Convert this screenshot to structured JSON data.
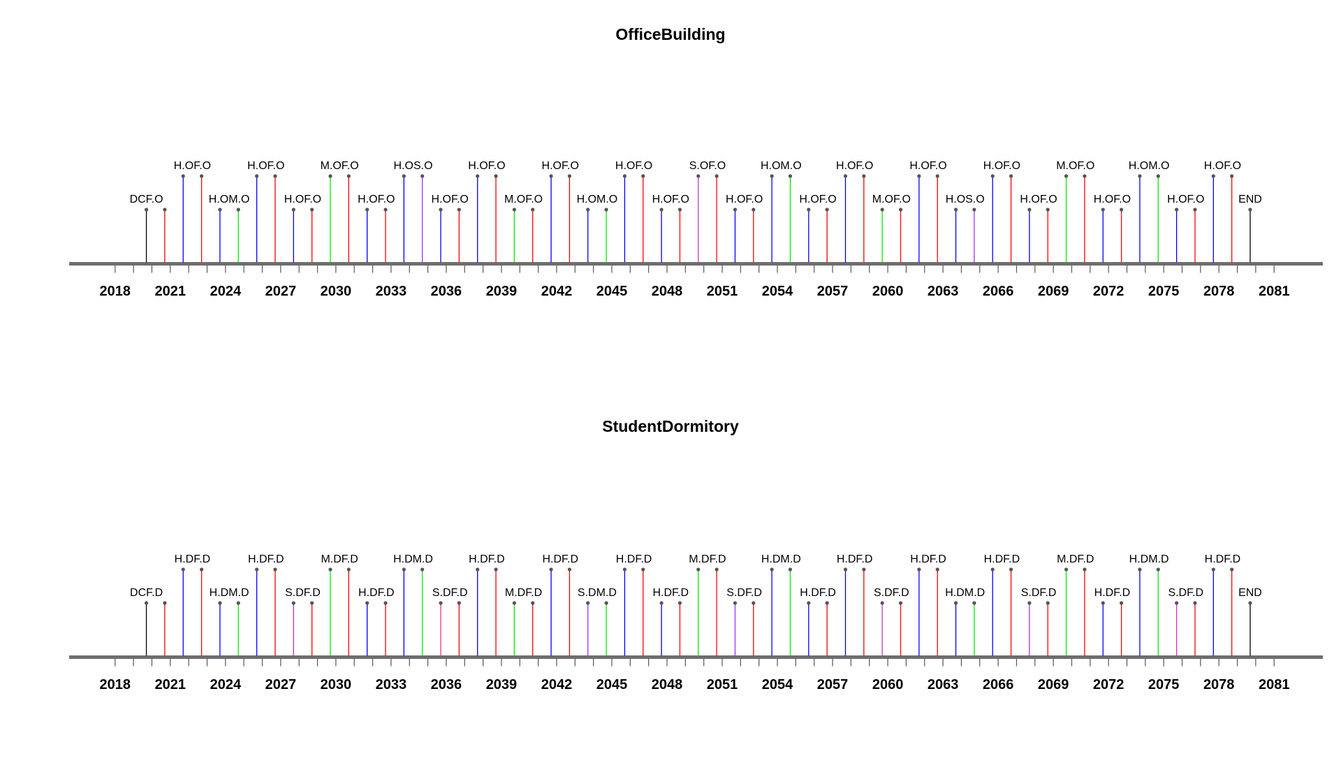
{
  "chart_data": [
    {
      "type": "timeline",
      "title": "OfficeBuilding",
      "x_ticks_labeled": [
        2018,
        2021,
        2024,
        2027,
        2030,
        2033,
        2036,
        2039,
        2042,
        2045,
        2048,
        2051,
        2054,
        2057,
        2060,
        2063,
        2066,
        2069,
        2072,
        2075,
        2078,
        2081
      ],
      "xlim": [
        2018,
        2081
      ],
      "events": [
        {
          "x": 2019.7,
          "color": "#000000",
          "level": "low"
        },
        {
          "x": 2020.7,
          "color": "#ff0000",
          "level": "low"
        },
        {
          "x": 2021.7,
          "color": "#0000ff",
          "level": "high"
        },
        {
          "x": 2022.7,
          "color": "#ff0000",
          "level": "high"
        },
        {
          "x": 2023.7,
          "color": "#0000ff",
          "level": "low"
        },
        {
          "x": 2024.7,
          "color": "#00ee00",
          "level": "low"
        },
        {
          "x": 2025.7,
          "color": "#0000ff",
          "level": "high"
        },
        {
          "x": 2026.7,
          "color": "#ff0000",
          "level": "high"
        },
        {
          "x": 2027.7,
          "color": "#0000ff",
          "level": "low"
        },
        {
          "x": 2028.7,
          "color": "#ff0000",
          "level": "low"
        },
        {
          "x": 2029.7,
          "color": "#00ee00",
          "level": "high"
        },
        {
          "x": 2030.7,
          "color": "#ff0000",
          "level": "high"
        },
        {
          "x": 2031.7,
          "color": "#0000ff",
          "level": "low"
        },
        {
          "x": 2032.7,
          "color": "#ff0000",
          "level": "low"
        },
        {
          "x": 2033.7,
          "color": "#0000ff",
          "level": "high"
        },
        {
          "x": 2034.7,
          "color": "#9933ff",
          "level": "high"
        },
        {
          "x": 2035.7,
          "color": "#0000ff",
          "level": "low"
        },
        {
          "x": 2036.7,
          "color": "#ff0000",
          "level": "low"
        },
        {
          "x": 2037.7,
          "color": "#0000ff",
          "level": "high"
        },
        {
          "x": 2038.7,
          "color": "#ff0000",
          "level": "high"
        },
        {
          "x": 2039.7,
          "color": "#00ee00",
          "level": "low"
        },
        {
          "x": 2040.7,
          "color": "#ff0000",
          "level": "low"
        },
        {
          "x": 2041.7,
          "color": "#0000ff",
          "level": "high"
        },
        {
          "x": 2042.7,
          "color": "#ff0000",
          "level": "high"
        },
        {
          "x": 2043.7,
          "color": "#0000ff",
          "level": "low"
        },
        {
          "x": 2044.7,
          "color": "#00ee00",
          "level": "low"
        },
        {
          "x": 2045.7,
          "color": "#0000ff",
          "level": "high"
        },
        {
          "x": 2046.7,
          "color": "#ff0000",
          "level": "high"
        },
        {
          "x": 2047.7,
          "color": "#0000ff",
          "level": "low"
        },
        {
          "x": 2048.7,
          "color": "#ff0000",
          "level": "low"
        },
        {
          "x": 2049.7,
          "color": "#cc33cc",
          "level": "high"
        },
        {
          "x": 2050.7,
          "color": "#ff0000",
          "level": "high"
        },
        {
          "x": 2051.7,
          "color": "#0000ff",
          "level": "low"
        },
        {
          "x": 2052.7,
          "color": "#ff0000",
          "level": "low"
        },
        {
          "x": 2053.7,
          "color": "#0000ff",
          "level": "high"
        },
        {
          "x": 2054.7,
          "color": "#00ee00",
          "level": "high"
        },
        {
          "x": 2055.7,
          "color": "#0000ff",
          "level": "low"
        },
        {
          "x": 2056.7,
          "color": "#ff0000",
          "level": "low"
        },
        {
          "x": 2057.7,
          "color": "#0000ff",
          "level": "high"
        },
        {
          "x": 2058.7,
          "color": "#ff0000",
          "level": "high"
        },
        {
          "x": 2059.7,
          "color": "#00ee00",
          "level": "low"
        },
        {
          "x": 2060.7,
          "color": "#ff0000",
          "level": "low"
        },
        {
          "x": 2061.7,
          "color": "#0000ff",
          "level": "high"
        },
        {
          "x": 2062.7,
          "color": "#ff0000",
          "level": "high"
        },
        {
          "x": 2063.7,
          "color": "#0000ff",
          "level": "low"
        },
        {
          "x": 2064.7,
          "color": "#9933ff",
          "level": "low"
        },
        {
          "x": 2065.7,
          "color": "#0000ff",
          "level": "high"
        },
        {
          "x": 2066.7,
          "color": "#ff0000",
          "level": "high"
        },
        {
          "x": 2067.7,
          "color": "#0000ff",
          "level": "low"
        },
        {
          "x": 2068.7,
          "color": "#ff0000",
          "level": "low"
        },
        {
          "x": 2069.7,
          "color": "#00ee00",
          "level": "high"
        },
        {
          "x": 2070.7,
          "color": "#ff0000",
          "level": "high"
        },
        {
          "x": 2071.7,
          "color": "#0000ff",
          "level": "low"
        },
        {
          "x": 2072.7,
          "color": "#ff0000",
          "level": "low"
        },
        {
          "x": 2073.7,
          "color": "#0000ff",
          "level": "high"
        },
        {
          "x": 2074.7,
          "color": "#00ee00",
          "level": "high"
        },
        {
          "x": 2075.7,
          "color": "#0000ff",
          "level": "low"
        },
        {
          "x": 2076.7,
          "color": "#ff0000",
          "level": "low"
        },
        {
          "x": 2077.7,
          "color": "#0000ff",
          "level": "high"
        },
        {
          "x": 2078.7,
          "color": "#ff0000",
          "level": "high"
        },
        {
          "x": 2079.7,
          "color": "#000000",
          "level": "low"
        }
      ],
      "labels": [
        {
          "x": 2019.7,
          "text": "DCF.O",
          "level": "low"
        },
        {
          "x": 2022.2,
          "text": "H.OF.O",
          "level": "high"
        },
        {
          "x": 2024.2,
          "text": "H.OM.O",
          "level": "low"
        },
        {
          "x": 2026.2,
          "text": "H.OF.O",
          "level": "high"
        },
        {
          "x": 2028.2,
          "text": "H.OF.O",
          "level": "low"
        },
        {
          "x": 2030.2,
          "text": "M.OF.O",
          "level": "high"
        },
        {
          "x": 2032.2,
          "text": "H.OF.O",
          "level": "low"
        },
        {
          "x": 2034.2,
          "text": "H.OS.O",
          "level": "high"
        },
        {
          "x": 2036.2,
          "text": "H.OF.O",
          "level": "low"
        },
        {
          "x": 2038.2,
          "text": "H.OF.O",
          "level": "high"
        },
        {
          "x": 2040.2,
          "text": "M.OF.O",
          "level": "low"
        },
        {
          "x": 2042.2,
          "text": "H.OF.O",
          "level": "high"
        },
        {
          "x": 2044.2,
          "text": "H.OM.O",
          "level": "low"
        },
        {
          "x": 2046.2,
          "text": "H.OF.O",
          "level": "high"
        },
        {
          "x": 2048.2,
          "text": "H.OF.O",
          "level": "low"
        },
        {
          "x": 2050.2,
          "text": "S.OF.O",
          "level": "high"
        },
        {
          "x": 2052.2,
          "text": "H.OF.O",
          "level": "low"
        },
        {
          "x": 2054.2,
          "text": "H.OM.O",
          "level": "high"
        },
        {
          "x": 2056.2,
          "text": "H.OF.O",
          "level": "low"
        },
        {
          "x": 2058.2,
          "text": "H.OF.O",
          "level": "high"
        },
        {
          "x": 2060.2,
          "text": "M.OF.O",
          "level": "low"
        },
        {
          "x": 2062.2,
          "text": "H.OF.O",
          "level": "high"
        },
        {
          "x": 2064.2,
          "text": "H.OS.O",
          "level": "low"
        },
        {
          "x": 2066.2,
          "text": "H.OF.O",
          "level": "high"
        },
        {
          "x": 2068.2,
          "text": "H.OF.O",
          "level": "low"
        },
        {
          "x": 2070.2,
          "text": "M.OF.O",
          "level": "high"
        },
        {
          "x": 2072.2,
          "text": "H.OF.O",
          "level": "low"
        },
        {
          "x": 2074.2,
          "text": "H.OM.O",
          "level": "high"
        },
        {
          "x": 2076.2,
          "text": "H.OF.O",
          "level": "low"
        },
        {
          "x": 2078.2,
          "text": "H.OF.O",
          "level": "high"
        },
        {
          "x": 2079.7,
          "text": "END",
          "level": "low"
        }
      ]
    },
    {
      "type": "timeline",
      "title": "StudentDormitory",
      "x_ticks_labeled": [
        2018,
        2021,
        2024,
        2027,
        2030,
        2033,
        2036,
        2039,
        2042,
        2045,
        2048,
        2051,
        2054,
        2057,
        2060,
        2063,
        2066,
        2069,
        2072,
        2075,
        2078,
        2081
      ],
      "xlim": [
        2018,
        2081
      ],
      "events": [
        {
          "x": 2019.7,
          "color": "#000000",
          "level": "low"
        },
        {
          "x": 2020.7,
          "color": "#ff0000",
          "level": "low"
        },
        {
          "x": 2021.7,
          "color": "#0000ff",
          "level": "high"
        },
        {
          "x": 2022.7,
          "color": "#ff0000",
          "level": "high"
        },
        {
          "x": 2023.7,
          "color": "#0000ff",
          "level": "low"
        },
        {
          "x": 2024.7,
          "color": "#00ee00",
          "level": "low"
        },
        {
          "x": 2025.7,
          "color": "#0000ff",
          "level": "high"
        },
        {
          "x": 2026.7,
          "color": "#ff0000",
          "level": "high"
        },
        {
          "x": 2027.7,
          "color": "#9933ff",
          "level": "low"
        },
        {
          "x": 2028.7,
          "color": "#ff0000",
          "level": "low"
        },
        {
          "x": 2029.7,
          "color": "#00ee00",
          "level": "high"
        },
        {
          "x": 2030.7,
          "color": "#ff0000",
          "level": "high"
        },
        {
          "x": 2031.7,
          "color": "#0000ff",
          "level": "low"
        },
        {
          "x": 2032.7,
          "color": "#ff0000",
          "level": "low"
        },
        {
          "x": 2033.7,
          "color": "#0000ff",
          "level": "high"
        },
        {
          "x": 2034.7,
          "color": "#00ee00",
          "level": "high"
        },
        {
          "x": 2035.7,
          "color": "#ff3366",
          "level": "low"
        },
        {
          "x": 2036.7,
          "color": "#ff0000",
          "level": "low"
        },
        {
          "x": 2037.7,
          "color": "#0000ff",
          "level": "high"
        },
        {
          "x": 2038.7,
          "color": "#ff0000",
          "level": "high"
        },
        {
          "x": 2039.7,
          "color": "#00ee00",
          "level": "low"
        },
        {
          "x": 2040.7,
          "color": "#ff0000",
          "level": "low"
        },
        {
          "x": 2041.7,
          "color": "#0000ff",
          "level": "high"
        },
        {
          "x": 2042.7,
          "color": "#ff0000",
          "level": "high"
        },
        {
          "x": 2043.7,
          "color": "#9933ff",
          "level": "low"
        },
        {
          "x": 2044.7,
          "color": "#00ee00",
          "level": "low"
        },
        {
          "x": 2045.7,
          "color": "#0000ff",
          "level": "high"
        },
        {
          "x": 2046.7,
          "color": "#ff0000",
          "level": "high"
        },
        {
          "x": 2047.7,
          "color": "#0000ff",
          "level": "low"
        },
        {
          "x": 2048.7,
          "color": "#ff0000",
          "level": "low"
        },
        {
          "x": 2049.7,
          "color": "#00ee00",
          "level": "high"
        },
        {
          "x": 2050.7,
          "color": "#ff0000",
          "level": "high"
        },
        {
          "x": 2051.7,
          "color": "#9933ff",
          "level": "low"
        },
        {
          "x": 2052.7,
          "color": "#ff0000",
          "level": "low"
        },
        {
          "x": 2053.7,
          "color": "#0000ff",
          "level": "high"
        },
        {
          "x": 2054.7,
          "color": "#00ee00",
          "level": "high"
        },
        {
          "x": 2055.7,
          "color": "#0000ff",
          "level": "low"
        },
        {
          "x": 2056.7,
          "color": "#ff0000",
          "level": "low"
        },
        {
          "x": 2057.7,
          "color": "#0000ff",
          "level": "high"
        },
        {
          "x": 2058.7,
          "color": "#ff0000",
          "level": "high"
        },
        {
          "x": 2059.7,
          "color": "#cc33cc",
          "level": "low"
        },
        {
          "x": 2060.7,
          "color": "#ff0000",
          "level": "low"
        },
        {
          "x": 2061.7,
          "color": "#0000ff",
          "level": "high"
        },
        {
          "x": 2062.7,
          "color": "#ff0000",
          "level": "high"
        },
        {
          "x": 2063.7,
          "color": "#0000ff",
          "level": "low"
        },
        {
          "x": 2064.7,
          "color": "#00ee00",
          "level": "low"
        },
        {
          "x": 2065.7,
          "color": "#0000ff",
          "level": "high"
        },
        {
          "x": 2066.7,
          "color": "#ff0000",
          "level": "high"
        },
        {
          "x": 2067.7,
          "color": "#9933ff",
          "level": "low"
        },
        {
          "x": 2068.7,
          "color": "#ff0000",
          "level": "low"
        },
        {
          "x": 2069.7,
          "color": "#00ee00",
          "level": "high"
        },
        {
          "x": 2070.7,
          "color": "#ff0000",
          "level": "high"
        },
        {
          "x": 2071.7,
          "color": "#0000ff",
          "level": "low"
        },
        {
          "x": 2072.7,
          "color": "#ff0000",
          "level": "low"
        },
        {
          "x": 2073.7,
          "color": "#0000ff",
          "level": "high"
        },
        {
          "x": 2074.7,
          "color": "#00ee00",
          "level": "high"
        },
        {
          "x": 2075.7,
          "color": "#cc33cc",
          "level": "low"
        },
        {
          "x": 2076.7,
          "color": "#ff0000",
          "level": "low"
        },
        {
          "x": 2077.7,
          "color": "#0000ff",
          "level": "high"
        },
        {
          "x": 2078.7,
          "color": "#ff0000",
          "level": "high"
        },
        {
          "x": 2079.7,
          "color": "#000000",
          "level": "low"
        }
      ],
      "labels": [
        {
          "x": 2019.7,
          "text": "DCF.D",
          "level": "low"
        },
        {
          "x": 2022.2,
          "text": "H.DF.D",
          "level": "high"
        },
        {
          "x": 2024.2,
          "text": "H.DM.D",
          "level": "low"
        },
        {
          "x": 2026.2,
          "text": "H.DF.D",
          "level": "high"
        },
        {
          "x": 2028.2,
          "text": "S.DF.D",
          "level": "low"
        },
        {
          "x": 2030.2,
          "text": "M.DF.D",
          "level": "high"
        },
        {
          "x": 2032.2,
          "text": "H.DF.D",
          "level": "low"
        },
        {
          "x": 2034.2,
          "text": "H.DM.D",
          "level": "high"
        },
        {
          "x": 2036.2,
          "text": "S.DF.D",
          "level": "low"
        },
        {
          "x": 2038.2,
          "text": "H.DF.D",
          "level": "high"
        },
        {
          "x": 2040.2,
          "text": "M.DF.D",
          "level": "low"
        },
        {
          "x": 2042.2,
          "text": "H.DF.D",
          "level": "high"
        },
        {
          "x": 2044.2,
          "text": "S.DM.D",
          "level": "low"
        },
        {
          "x": 2046.2,
          "text": "H.DF.D",
          "level": "high"
        },
        {
          "x": 2048.2,
          "text": "H.DF.D",
          "level": "low"
        },
        {
          "x": 2050.2,
          "text": "M.DF.D",
          "level": "high"
        },
        {
          "x": 2052.2,
          "text": "S.DF.D",
          "level": "low"
        },
        {
          "x": 2054.2,
          "text": "H.DM.D",
          "level": "high"
        },
        {
          "x": 2056.2,
          "text": "H.DF.D",
          "level": "low"
        },
        {
          "x": 2058.2,
          "text": "H.DF.D",
          "level": "high"
        },
        {
          "x": 2060.2,
          "text": "S.DF.D",
          "level": "low"
        },
        {
          "x": 2062.2,
          "text": "H.DF.D",
          "level": "high"
        },
        {
          "x": 2064.2,
          "text": "H.DM.D",
          "level": "low"
        },
        {
          "x": 2066.2,
          "text": "H.DF.D",
          "level": "high"
        },
        {
          "x": 2068.2,
          "text": "S.DF.D",
          "level": "low"
        },
        {
          "x": 2070.2,
          "text": "M.DF.D",
          "level": "high"
        },
        {
          "x": 2072.2,
          "text": "H.DF.D",
          "level": "low"
        },
        {
          "x": 2074.2,
          "text": "H.DM.D",
          "level": "high"
        },
        {
          "x": 2076.2,
          "text": "S.DF.D",
          "level": "low"
        },
        {
          "x": 2078.2,
          "text": "H.DF.D",
          "level": "high"
        },
        {
          "x": 2079.7,
          "text": "END",
          "level": "low"
        }
      ]
    }
  ]
}
